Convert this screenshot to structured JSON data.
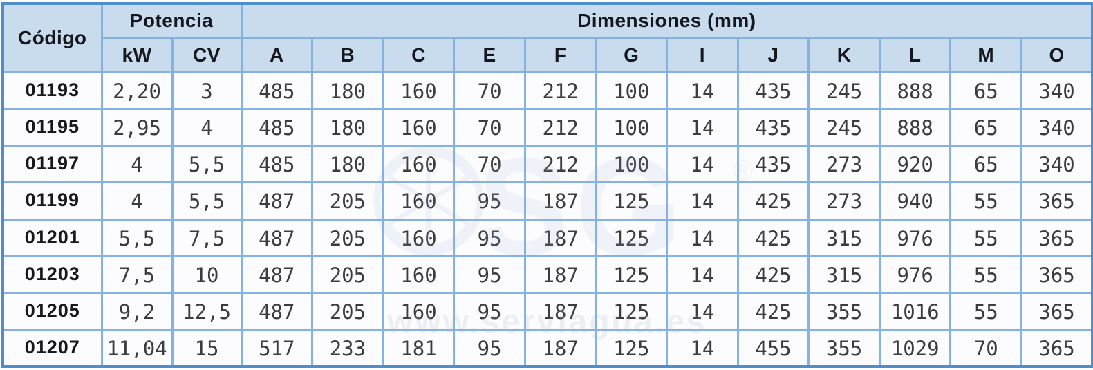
{
  "table": {
    "header": {
      "codigo": "Código",
      "potencia": "Potencia",
      "dimensiones": "Dimensiones (mm)",
      "potencia_sub": [
        "kW",
        "CV"
      ],
      "dim_sub": [
        "A",
        "B",
        "C",
        "E",
        "F",
        "G",
        "I",
        "J",
        "K",
        "L",
        "M",
        "O"
      ]
    },
    "rows": [
      {
        "codigo": "01193",
        "kw": "2,20",
        "cv": "3",
        "dims": [
          "485",
          "180",
          "160",
          "70",
          "212",
          "100",
          "14",
          "435",
          "245",
          "888",
          "65",
          "340"
        ]
      },
      {
        "codigo": "01195",
        "kw": "2,95",
        "cv": "4",
        "dims": [
          "485",
          "180",
          "160",
          "70",
          "212",
          "100",
          "14",
          "435",
          "245",
          "888",
          "65",
          "340"
        ]
      },
      {
        "codigo": "01197",
        "kw": "4",
        "cv": "5,5",
        "dims": [
          "485",
          "180",
          "160",
          "70",
          "212",
          "100",
          "14",
          "435",
          "273",
          "920",
          "65",
          "340"
        ]
      },
      {
        "codigo": "01199",
        "kw": "4",
        "cv": "5,5",
        "dims": [
          "487",
          "205",
          "160",
          "95",
          "187",
          "125",
          "14",
          "425",
          "273",
          "940",
          "55",
          "365"
        ]
      },
      {
        "codigo": "01201",
        "kw": "5,5",
        "cv": "7,5",
        "dims": [
          "487",
          "205",
          "160",
          "95",
          "187",
          "125",
          "14",
          "425",
          "315",
          "976",
          "55",
          "365"
        ]
      },
      {
        "codigo": "01203",
        "kw": "7,5",
        "cv": "10",
        "dims": [
          "487",
          "205",
          "160",
          "95",
          "187",
          "125",
          "14",
          "425",
          "315",
          "976",
          "55",
          "365"
        ]
      },
      {
        "codigo": "01205",
        "kw": "9,2",
        "cv": "12,5",
        "dims": [
          "487",
          "205",
          "160",
          "95",
          "187",
          "125",
          "14",
          "425",
          "355",
          "1016",
          "55",
          "365"
        ]
      },
      {
        "codigo": "01207",
        "kw": "11,04",
        "cv": "15",
        "dims": [
          "517",
          "233",
          "181",
          "95",
          "187",
          "125",
          "14",
          "455",
          "355",
          "1029",
          "70",
          "365"
        ]
      }
    ]
  },
  "watermark": {
    "logo_text": "SG",
    "registered": "®",
    "url": "www.serviagua.es"
  },
  "colors": {
    "outer_border": "#4e8ecb",
    "grid_border": "#85b2e0",
    "header_bg": "#c9dcee",
    "header_text": "#16161f",
    "cell_bg": "#fcfcfe",
    "cell_text": "#3c3c3c"
  }
}
